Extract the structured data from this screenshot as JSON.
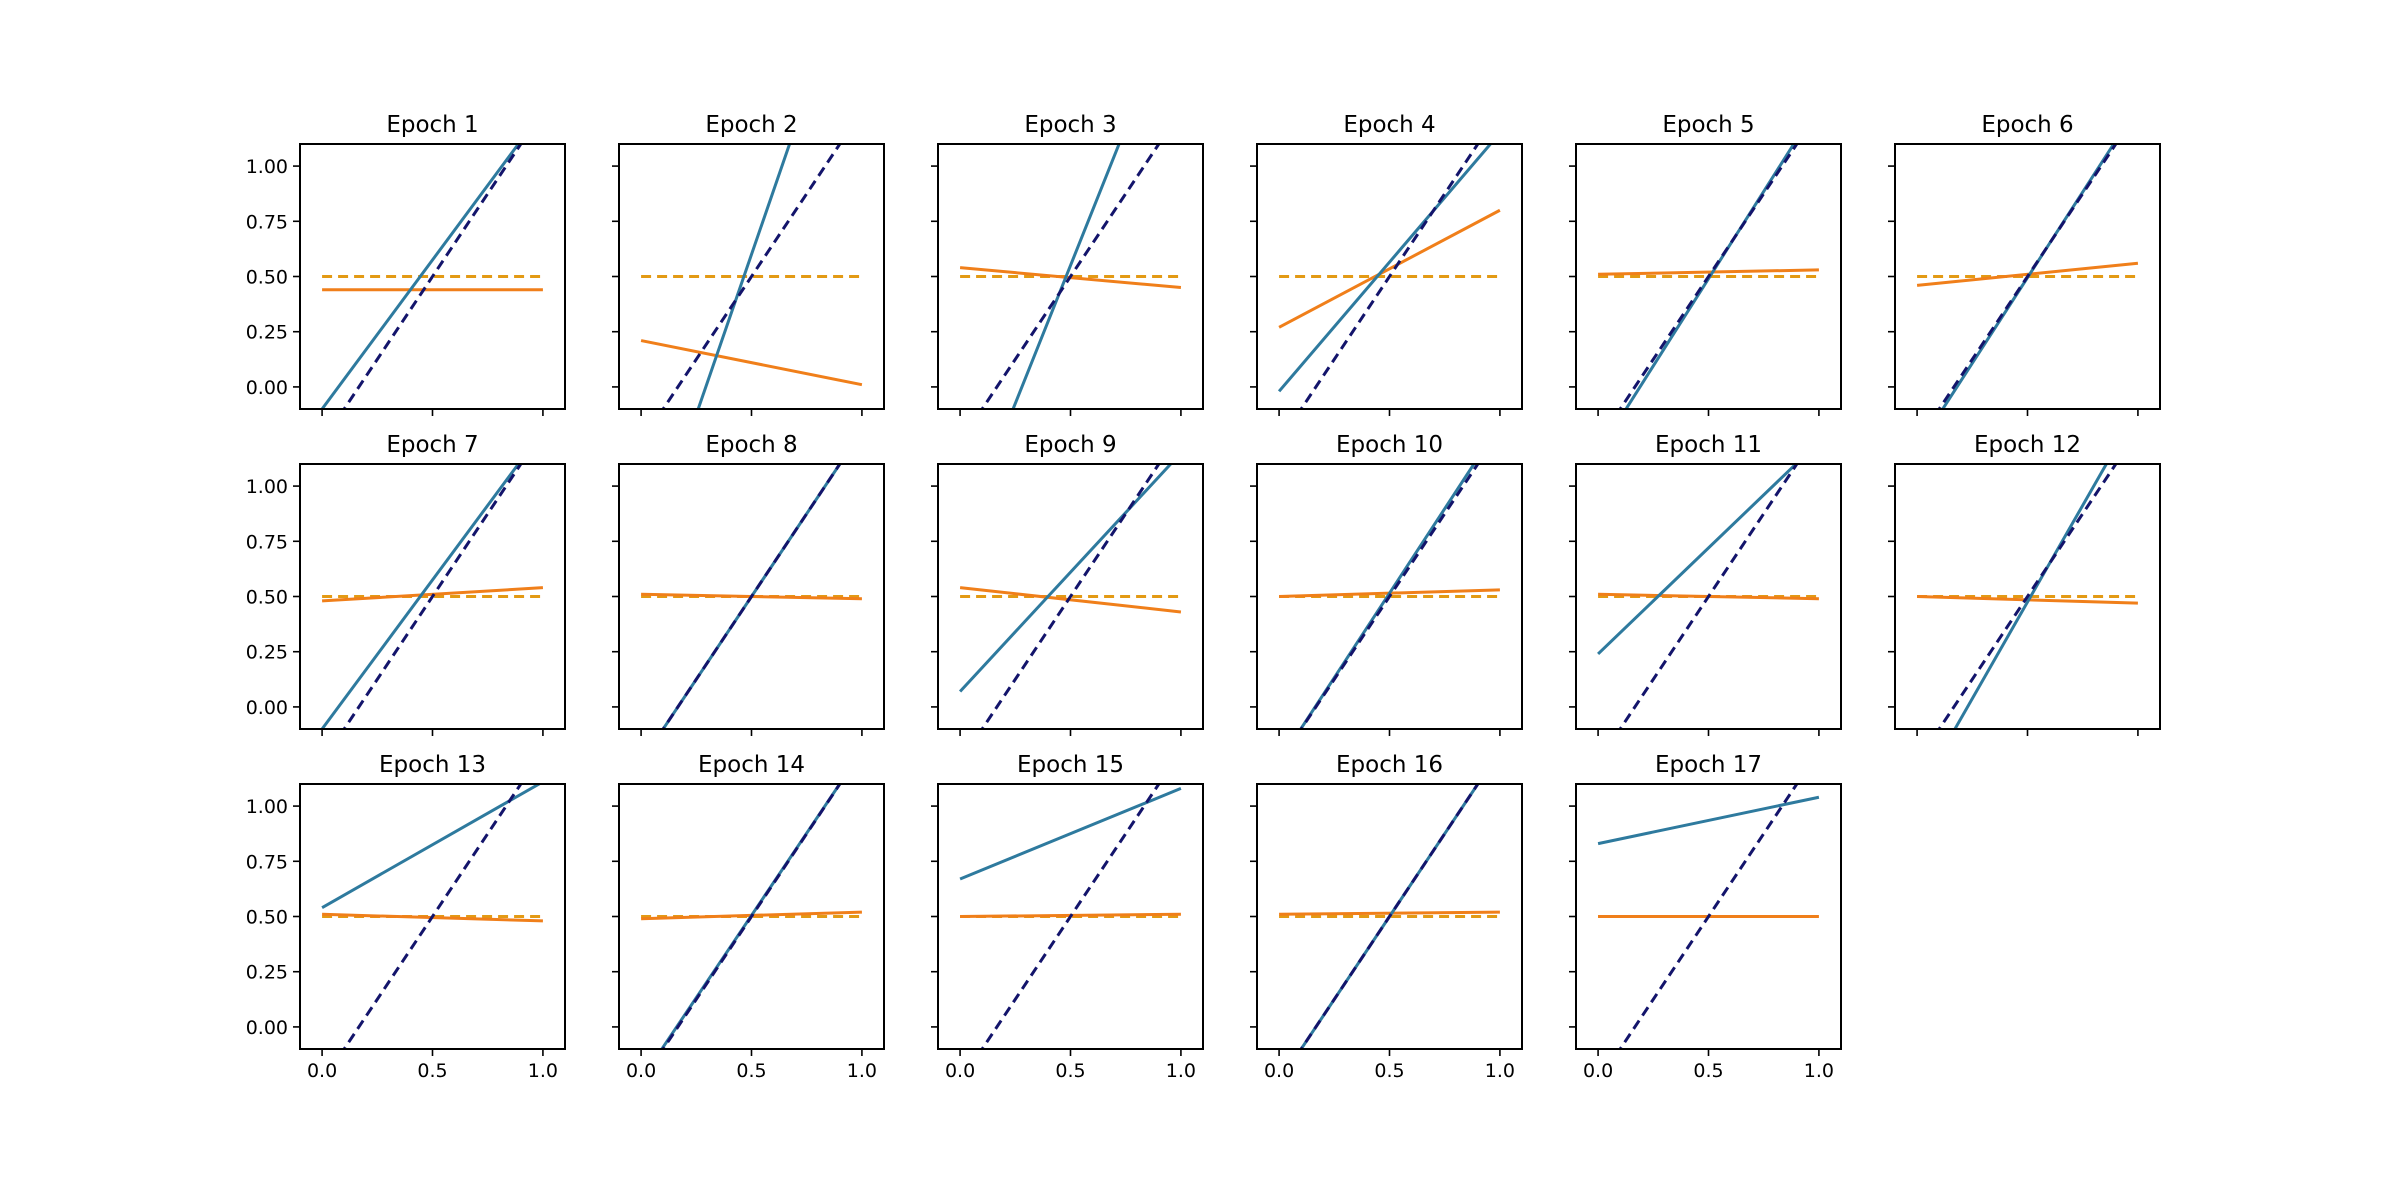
{
  "chart_data": {
    "type": "line",
    "grid_rows": 3,
    "grid_cols": 6,
    "xlim": [
      -0.1,
      1.1
    ],
    "ylim": [
      -0.1,
      1.1
    ],
    "x_ticks": [
      0.0,
      0.5,
      1.0
    ],
    "x_tick_labels": [
      "0.0",
      "0.5",
      "1.0"
    ],
    "y_ticks": [
      0.0,
      0.25,
      0.5,
      0.75,
      1.0
    ],
    "y_tick_labels": [
      "0.00",
      "0.25",
      "0.50",
      "0.75",
      "1.00"
    ],
    "grid": false,
    "colors": {
      "fitted_line": "#2e7a9e",
      "fitted_flat": "#f07f1a",
      "target_line": "#13146b",
      "target_flat": "#e39a14"
    },
    "target": {
      "dashed_steep": {
        "x0": 0.0,
        "y0": -0.25,
        "x1": 1.0,
        "y1": 1.25
      },
      "dashed_flat": {
        "x0": 0.0,
        "y0": 0.5,
        "x1": 1.0,
        "y1": 0.5
      }
    },
    "panels": [
      {
        "title": "Epoch 1",
        "steep": {
          "y0": -0.1,
          "y1": 1.25
        },
        "flat": {
          "y0": 0.44,
          "y1": 0.44
        }
      },
      {
        "title": "Epoch 2",
        "steep": {
          "y0": -0.85,
          "y1": 2.05
        },
        "flat": {
          "y0": 0.21,
          "y1": 0.01
        }
      },
      {
        "title": "Epoch 3",
        "steep": {
          "y0": -0.7,
          "y1": 1.8
        },
        "flat": {
          "y0": 0.54,
          "y1": 0.45
        }
      },
      {
        "title": "Epoch 4",
        "steep": {
          "y0": -0.02,
          "y1": 1.15
        },
        "flat": {
          "y0": 0.27,
          "y1": 0.8
        }
      },
      {
        "title": "Epoch 5",
        "steep": {
          "y0": -0.3,
          "y1": 1.28
        },
        "flat": {
          "y0": 0.51,
          "y1": 0.53
        }
      },
      {
        "title": "Epoch 6",
        "steep": {
          "y0": -0.28,
          "y1": 1.27
        },
        "flat": {
          "y0": 0.46,
          "y1": 0.56
        }
      },
      {
        "title": "Epoch 7",
        "steep": {
          "y0": -0.1,
          "y1": 1.25
        },
        "flat": {
          "y0": 0.48,
          "y1": 0.54
        }
      },
      {
        "title": "Epoch 8",
        "steep": {
          "y0": -0.25,
          "y1": 1.25
        },
        "flat": {
          "y0": 0.51,
          "y1": 0.49
        }
      },
      {
        "title": "Epoch 9",
        "steep": {
          "y0": 0.07,
          "y1": 1.15
        },
        "flat": {
          "y0": 0.54,
          "y1": 0.43
        }
      },
      {
        "title": "Epoch 10",
        "steep": {
          "y0": -0.25,
          "y1": 1.28
        },
        "flat": {
          "y0": 0.5,
          "y1": 0.53
        }
      },
      {
        "title": "Epoch 11",
        "steep": {
          "y0": 0.24,
          "y1": 1.2
        },
        "flat": {
          "y0": 0.51,
          "y1": 0.49
        }
      },
      {
        "title": "Epoch 12",
        "steep": {
          "y0": -0.4,
          "y1": 1.35
        },
        "flat": {
          "y0": 0.5,
          "y1": 0.47
        }
      },
      {
        "title": "Epoch 13",
        "steep": {
          "y0": 0.54,
          "y1": 1.11
        },
        "flat": {
          "y0": 0.51,
          "y1": 0.48
        }
      },
      {
        "title": "Epoch 14",
        "steep": {
          "y0": -0.24,
          "y1": 1.25
        },
        "flat": {
          "y0": 0.49,
          "y1": 0.52
        }
      },
      {
        "title": "Epoch 15",
        "steep": {
          "y0": 0.67,
          "y1": 1.08
        },
        "flat": {
          "y0": 0.5,
          "y1": 0.51
        }
      },
      {
        "title": "Epoch 16",
        "steep": {
          "y0": -0.25,
          "y1": 1.25
        },
        "flat": {
          "y0": 0.51,
          "y1": 0.52
        }
      },
      {
        "title": "Epoch 17",
        "steep": {
          "y0": 0.83,
          "y1": 1.04
        },
        "flat": {
          "y0": 0.5,
          "y1": 0.5
        }
      }
    ]
  }
}
